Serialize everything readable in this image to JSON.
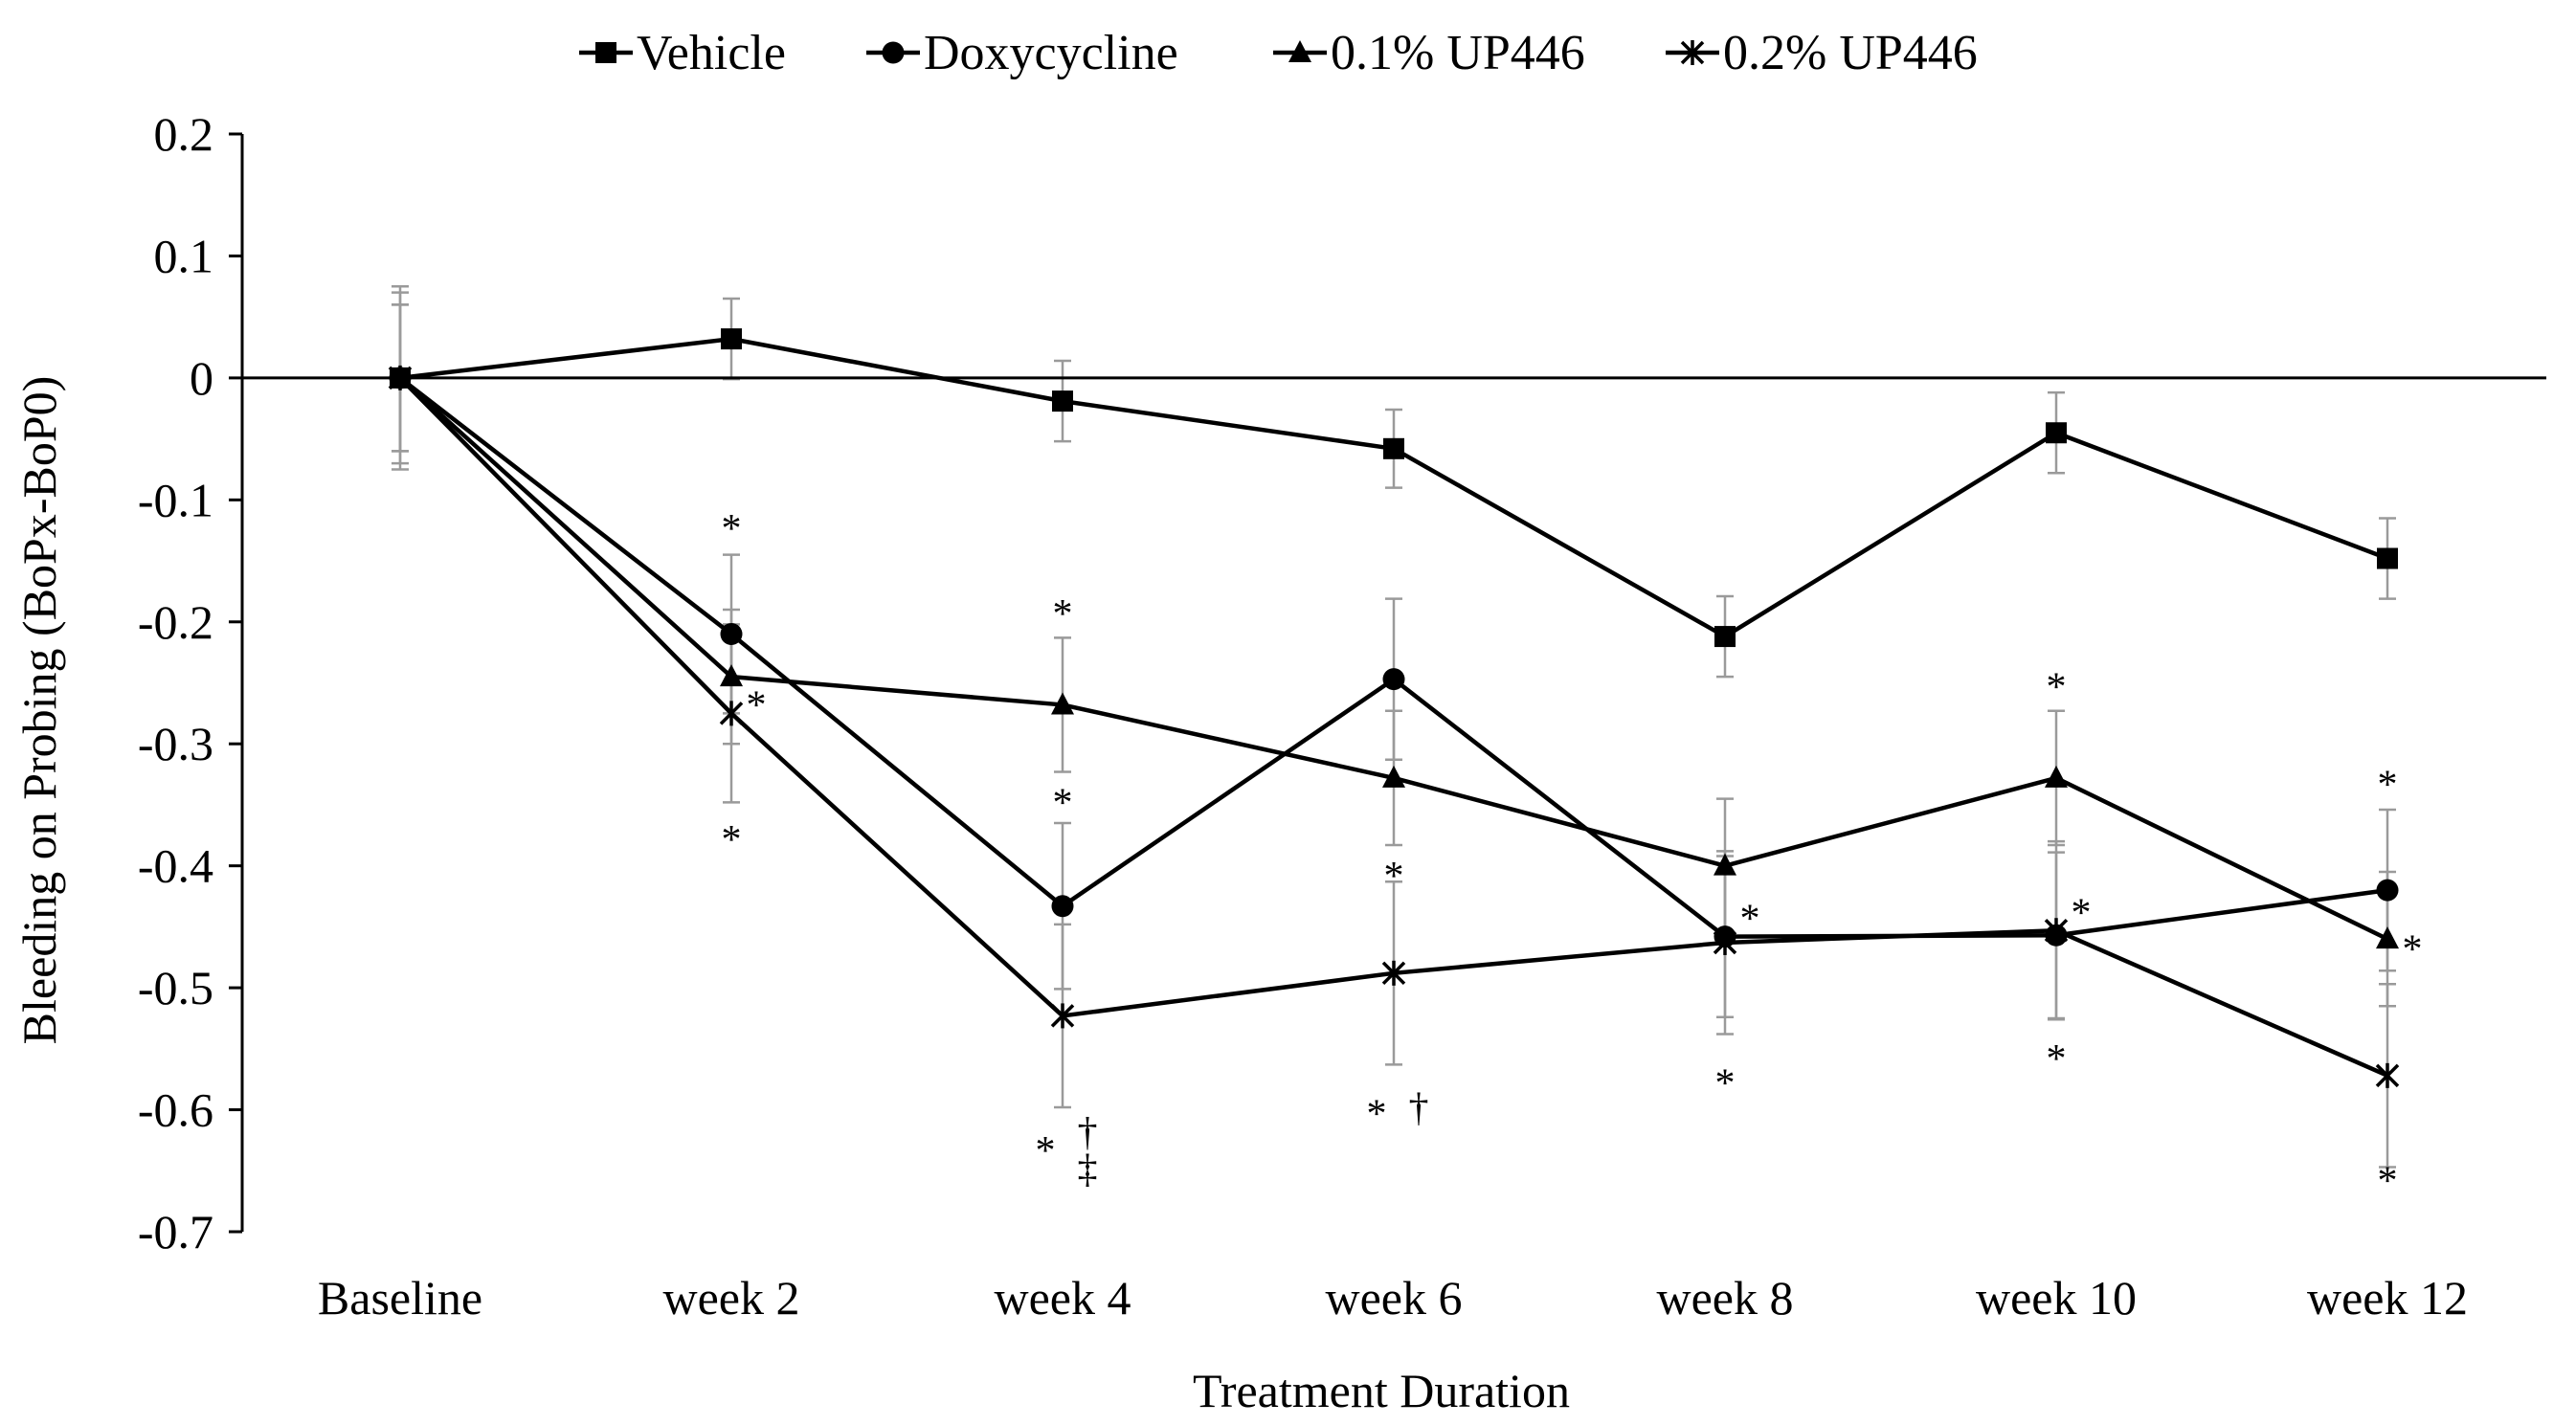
{
  "chart_data": {
    "type": "line",
    "title": "",
    "xlabel": "Treatment Duration",
    "ylabel": "Bleeding on Probing (BoPx-BoP0)",
    "categories": [
      "Baseline",
      "week 2",
      "week 4",
      "week 6",
      "week 8",
      "week 10",
      "week 12"
    ],
    "ylim": [
      -0.7,
      0.2
    ],
    "yticks": [
      0.2,
      0.1,
      0,
      -0.1,
      -0.2,
      -0.3,
      -0.4,
      -0.5,
      -0.6,
      -0.7
    ],
    "ytick_labels": [
      "0.2",
      "0.1",
      "0",
      "-0.1",
      "-0.2",
      "-0.3",
      "-0.4",
      "-0.5",
      "-0.6",
      "-0.7"
    ],
    "legend_position": "top",
    "series": [
      {
        "name": "Vehicle",
        "marker": "square",
        "values": [
          0,
          0.032,
          -0.019,
          -0.058,
          -0.212,
          -0.045,
          -0.148
        ],
        "errors": [
          0.075,
          0.033,
          0.033,
          0.032,
          0.033,
          0.033,
          0.033
        ]
      },
      {
        "name": "Doxycycline",
        "marker": "circle",
        "values": [
          0,
          -0.21,
          -0.433,
          -0.247,
          -0.458,
          -0.457,
          -0.42
        ],
        "errors": [
          0.06,
          0.065,
          0.068,
          0.066,
          0.066,
          0.068,
          0.066
        ]
      },
      {
        "name": "0.1% UP446",
        "marker": "triangle",
        "values": [
          0,
          -0.245,
          -0.268,
          -0.328,
          -0.4,
          -0.328,
          -0.46
        ],
        "errors": [
          0.06,
          0.055,
          0.055,
          0.055,
          0.055,
          0.055,
          0.055
        ]
      },
      {
        "name": "0.2% UP446",
        "marker": "x",
        "values": [
          0,
          -0.275,
          -0.523,
          -0.488,
          -0.463,
          -0.453,
          -0.572
        ],
        "errors": [
          0.07,
          0.073,
          0.075,
          0.075,
          0.075,
          0.073,
          0.075
        ]
      }
    ],
    "annotations": [
      {
        "text": "*",
        "category": "week 2",
        "value": -0.12
      },
      {
        "text": "*",
        "category": "week 2",
        "value": -0.265,
        "side": "right"
      },
      {
        "text": "*",
        "category": "week 2",
        "value": -0.375
      },
      {
        "text": "*",
        "category": "week 4",
        "value": -0.19
      },
      {
        "text": "*",
        "category": "week 4",
        "value": -0.345
      },
      {
        "text": "*",
        "category": "week 4",
        "value": -0.63,
        "side": "left"
      },
      {
        "text": "†",
        "category": "week 4",
        "value": -0.615,
        "side": "right"
      },
      {
        "text": "‡",
        "category": "week 4",
        "value": -0.645,
        "side": "right"
      },
      {
        "text": "*",
        "category": "week 6",
        "value": -0.405
      },
      {
        "text": "*",
        "category": "week 6",
        "value": -0.6,
        "side": "left"
      },
      {
        "text": "†",
        "category": "week 6",
        "value": -0.595,
        "side": "right"
      },
      {
        "text": "*",
        "category": "week 8",
        "value": -0.44,
        "side": "right"
      },
      {
        "text": "*",
        "category": "week 8",
        "value": -0.575
      },
      {
        "text": "*",
        "category": "week 10",
        "value": -0.25
      },
      {
        "text": "*",
        "category": "week 10",
        "value": -0.435,
        "side": "right"
      },
      {
        "text": "*",
        "category": "week 10",
        "value": -0.555
      },
      {
        "text": "*",
        "category": "week 12",
        "value": -0.33
      },
      {
        "text": "*",
        "category": "week 12",
        "value": -0.465,
        "side": "right"
      },
      {
        "text": "*",
        "category": "week 12",
        "value": -0.655
      }
    ]
  }
}
